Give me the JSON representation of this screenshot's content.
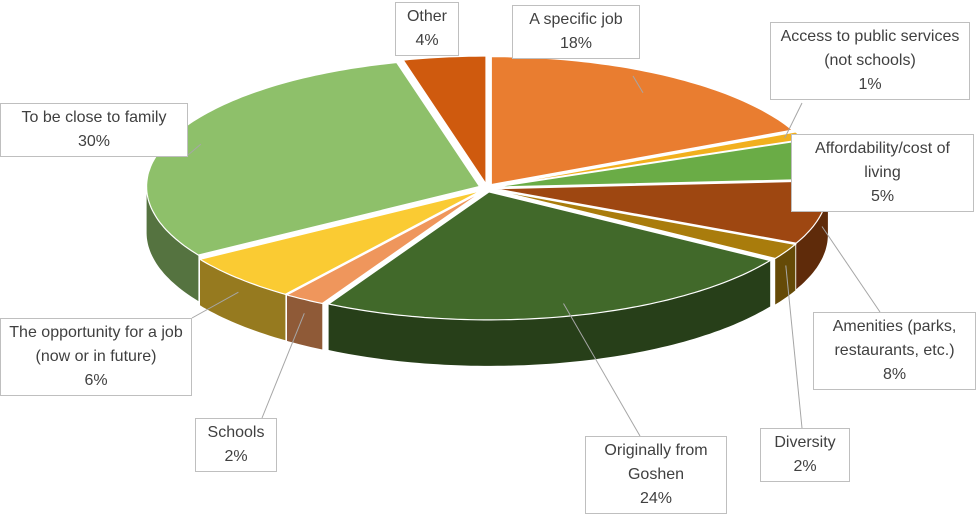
{
  "chart_data": {
    "type": "pie",
    "style": "3d-exploded",
    "title": "",
    "slices": [
      {
        "label": "A specific job",
        "value": 18,
        "value_label": "18%",
        "color": "#E97D30"
      },
      {
        "label": "Access to public services (not schools)",
        "value": 1,
        "value_label": "1%",
        "color": "#F2B01E"
      },
      {
        "label": "Affordability/cost of living",
        "value": 5,
        "value_label": "5%",
        "color": "#6AAC46"
      },
      {
        "label": "Amenities (parks, restaurants, etc.)",
        "value": 8,
        "value_label": "8%",
        "color": "#9E4711"
      },
      {
        "label": "Diversity",
        "value": 2,
        "value_label": "2%",
        "color": "#A97C0C"
      },
      {
        "label": "Originally from Goshen",
        "value": 24,
        "value_label": "24%",
        "color": "#41692A"
      },
      {
        "label": "Schools",
        "value": 2,
        "value_label": "2%",
        "color": "#EF965C"
      },
      {
        "label": "The opportunity for a job (now or in future)",
        "value": 6,
        "value_label": "6%",
        "color": "#FACB33"
      },
      {
        "label": "To be close to family",
        "value": 30,
        "value_label": "30%",
        "color": "#8EC06A"
      },
      {
        "label": "Other",
        "value": 4,
        "value_label": "4%",
        "color": "#CF5A0E"
      }
    ]
  }
}
